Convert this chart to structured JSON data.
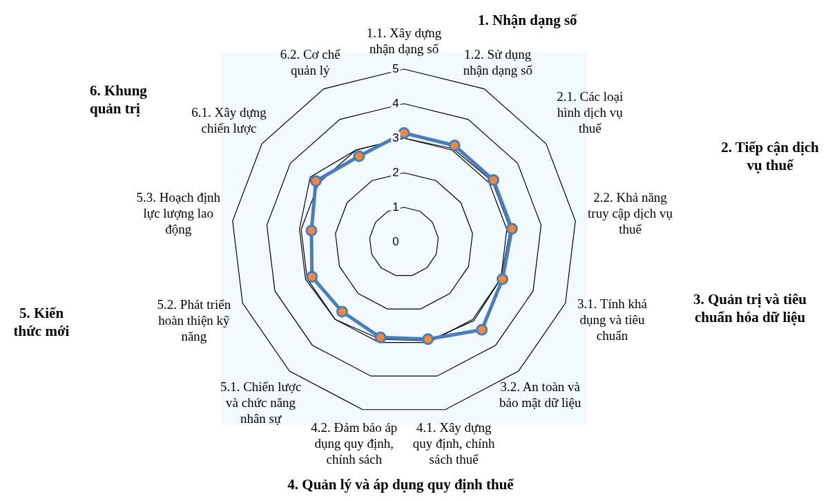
{
  "chart_data": {
    "type": "radar",
    "categories": [
      "1.1. Xây dựng nhận dạng số",
      "1.2. Sử dụng nhận dạng số",
      "2.1. Các loại hình dịch vụ thuế",
      "2.2. Khả năng truy cập dịch vụ thuế",
      "3.1. Tính khả dụng và tiêu chuẩn",
      "3.2. An toàn và bảo mật dữ liệu",
      "4.1. Xây dựng quy định, chính sách thuế",
      "4.2. Đảm bảo áp dụng quy định, chính sách",
      "5.1. Chiến lược và chức năng nhân sự",
      "5.2. Phát triển hoàn thiện kỹ năng",
      "5.3. Hoạch định lực lượng lao động",
      "6.1. Xây dựng chiến lược",
      "6.2. Cơ chế quản lý"
    ],
    "series": [
      {
        "color": "#000000",
        "marker": "none",
        "values": [
          3.0,
          3.05,
          3.1,
          3.1,
          3.0,
          3.05,
          2.95,
          2.9,
          3.0,
          3.05,
          3.05,
          3.3,
          3.0
        ]
      },
      {
        "color": "#4a7ebb",
        "marker": "circle",
        "values": [
          3.15,
          3.15,
          3.15,
          3.15,
          3.05,
          3.4,
          2.9,
          2.85,
          2.7,
          2.85,
          2.7,
          3.1,
          2.8
        ]
      }
    ],
    "ylim": [
      0,
      5
    ],
    "yticks": [
      0,
      1,
      2,
      3,
      4,
      5
    ],
    "grid": true,
    "legend": false,
    "annotations": [
      "1. Nhận dạng số",
      "2. Tiếp cận dịch vụ thuế",
      "3. Quản trị và tiêu chuẩn hóa dữ liệu",
      "4. Quản lý và áp dụng quy định thuế",
      "5. Kiến thức mới",
      "6. Khung quản trị"
    ]
  }
}
